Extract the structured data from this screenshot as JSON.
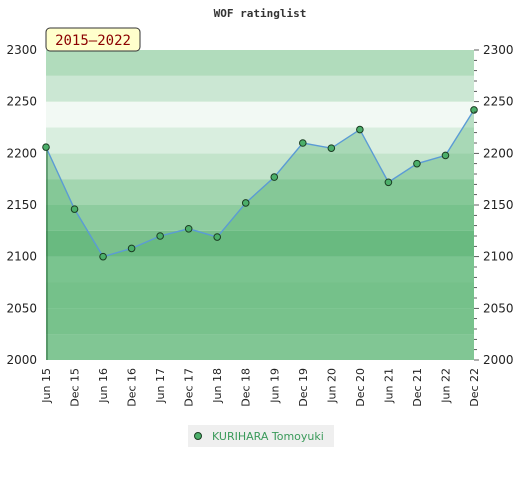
{
  "chart_data": {
    "type": "area",
    "title": "WOF ratinglist",
    "badge": "2015–2022",
    "xlabel": "",
    "ylabel": "",
    "ylim": [
      2000,
      2300
    ],
    "yticks": [
      2000,
      2050,
      2100,
      2150,
      2200,
      2250,
      2300
    ],
    "categories": [
      "Jun 15",
      "Dec 15",
      "Jun 16",
      "Dec 16",
      "Jun 17",
      "Dec 17",
      "Jun 18",
      "Dec 18",
      "Jun 19",
      "Dec 19",
      "Jun 20",
      "Dec 20",
      "Jun 21",
      "Dec 21",
      "Jun 22",
      "Dec 22"
    ],
    "series": [
      {
        "name": "KURIHARA Tomoyuki",
        "values": [
          2206,
          2146,
          2100,
          2108,
          2120,
          2127,
          2119,
          2152,
          2177,
          2210,
          2205,
          2223,
          2172,
          2190,
          2198,
          2242
        ]
      }
    ],
    "grid": true,
    "legend_position": "bottom-center",
    "colors": {
      "line": "#5b9bd5",
      "area": "#4caf6a",
      "marker_fill": "#4caf6a",
      "marker_stroke": "#1a3d22",
      "badge_bg": "#ffffcc",
      "badge_text": "#8b0000",
      "legend_text": "#3a9a5a"
    }
  }
}
